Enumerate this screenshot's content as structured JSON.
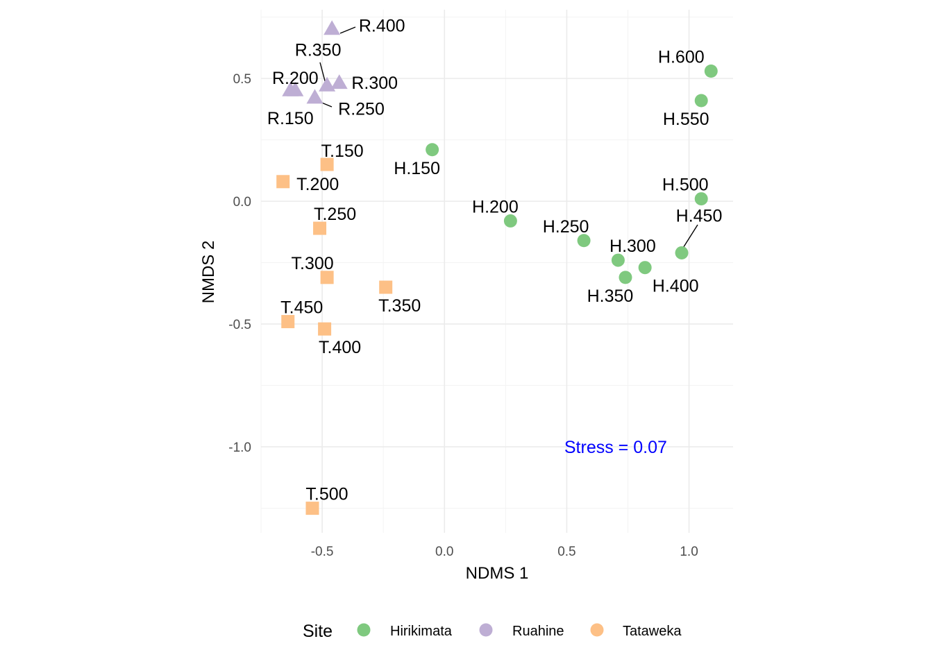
{
  "chart_data": {
    "type": "scatter",
    "xlabel": "NDMS 1",
    "ylabel": "NMDS 2",
    "xlim": [
      -0.75,
      1.18
    ],
    "ylim": [
      -1.35,
      0.78
    ],
    "x_ticks": [
      -0.5,
      0.0,
      0.5,
      1.0
    ],
    "x_tick_labels": [
      "-0.5",
      "0.0",
      "0.5",
      "1.0"
    ],
    "y_ticks": [
      -1.0,
      -0.5,
      0.0,
      0.5
    ],
    "y_tick_labels": [
      "-1.0",
      "-0.5",
      "0.0",
      "0.5"
    ],
    "grid": true,
    "legend": {
      "title": "Site",
      "position": "bottom",
      "entries": [
        {
          "name": "Hirikimata",
          "color": "#7fc97f",
          "shape": "circle"
        },
        {
          "name": "Ruahine",
          "color": "#beaed4",
          "shape": "triangle"
        },
        {
          "name": "Tataweka",
          "color": "#fdc086",
          "shape": "square"
        }
      ]
    },
    "annotation": {
      "text": "Stress =  0.07",
      "x": 0.7,
      "y": -1.0,
      "color": "#0000ff"
    },
    "series": [
      {
        "name": "Hirikimata",
        "color": "#7fc97f",
        "shape": "circle",
        "points": [
          {
            "label": "H.150",
            "x": -0.05,
            "y": 0.21
          },
          {
            "label": "H.200",
            "x": 0.27,
            "y": -0.08
          },
          {
            "label": "H.250",
            "x": 0.57,
            "y": -0.16
          },
          {
            "label": "H.300",
            "x": 0.71,
            "y": -0.24
          },
          {
            "label": "H.350",
            "x": 0.74,
            "y": -0.31
          },
          {
            "label": "H.400",
            "x": 0.82,
            "y": -0.27
          },
          {
            "label": "H.450",
            "x": 0.97,
            "y": -0.21
          },
          {
            "label": "H.500",
            "x": 1.05,
            "y": 0.01
          },
          {
            "label": "H.550",
            "x": 1.05,
            "y": 0.41
          },
          {
            "label": "H.600",
            "x": 1.09,
            "y": 0.53
          }
        ]
      },
      {
        "name": "Ruahine",
        "color": "#beaed4",
        "shape": "triangle",
        "points": [
          {
            "label": "R.150",
            "x": -0.63,
            "y": 0.45
          },
          {
            "label": "R.200",
            "x": -0.61,
            "y": 0.45
          },
          {
            "label": "R.250",
            "x": -0.53,
            "y": 0.42
          },
          {
            "label": "R.300",
            "x": -0.43,
            "y": 0.48
          },
          {
            "label": "R.350",
            "x": -0.48,
            "y": 0.47
          },
          {
            "label": "R.400",
            "x": -0.46,
            "y": 0.7
          }
        ]
      },
      {
        "name": "Tataweka",
        "color": "#fdc086",
        "shape": "square",
        "points": [
          {
            "label": "T.150",
            "x": -0.48,
            "y": 0.15
          },
          {
            "label": "T.200",
            "x": -0.66,
            "y": 0.08
          },
          {
            "label": "T.250",
            "x": -0.51,
            "y": -0.11
          },
          {
            "label": "T.300",
            "x": -0.48,
            "y": -0.31
          },
          {
            "label": "T.350",
            "x": -0.24,
            "y": -0.35
          },
          {
            "label": "T.400",
            "x": -0.49,
            "y": -0.52
          },
          {
            "label": "T.450",
            "x": -0.64,
            "y": -0.49
          },
          {
            "label": "T.500",
            "x": -0.54,
            "y": -1.25
          }
        ]
      }
    ]
  }
}
